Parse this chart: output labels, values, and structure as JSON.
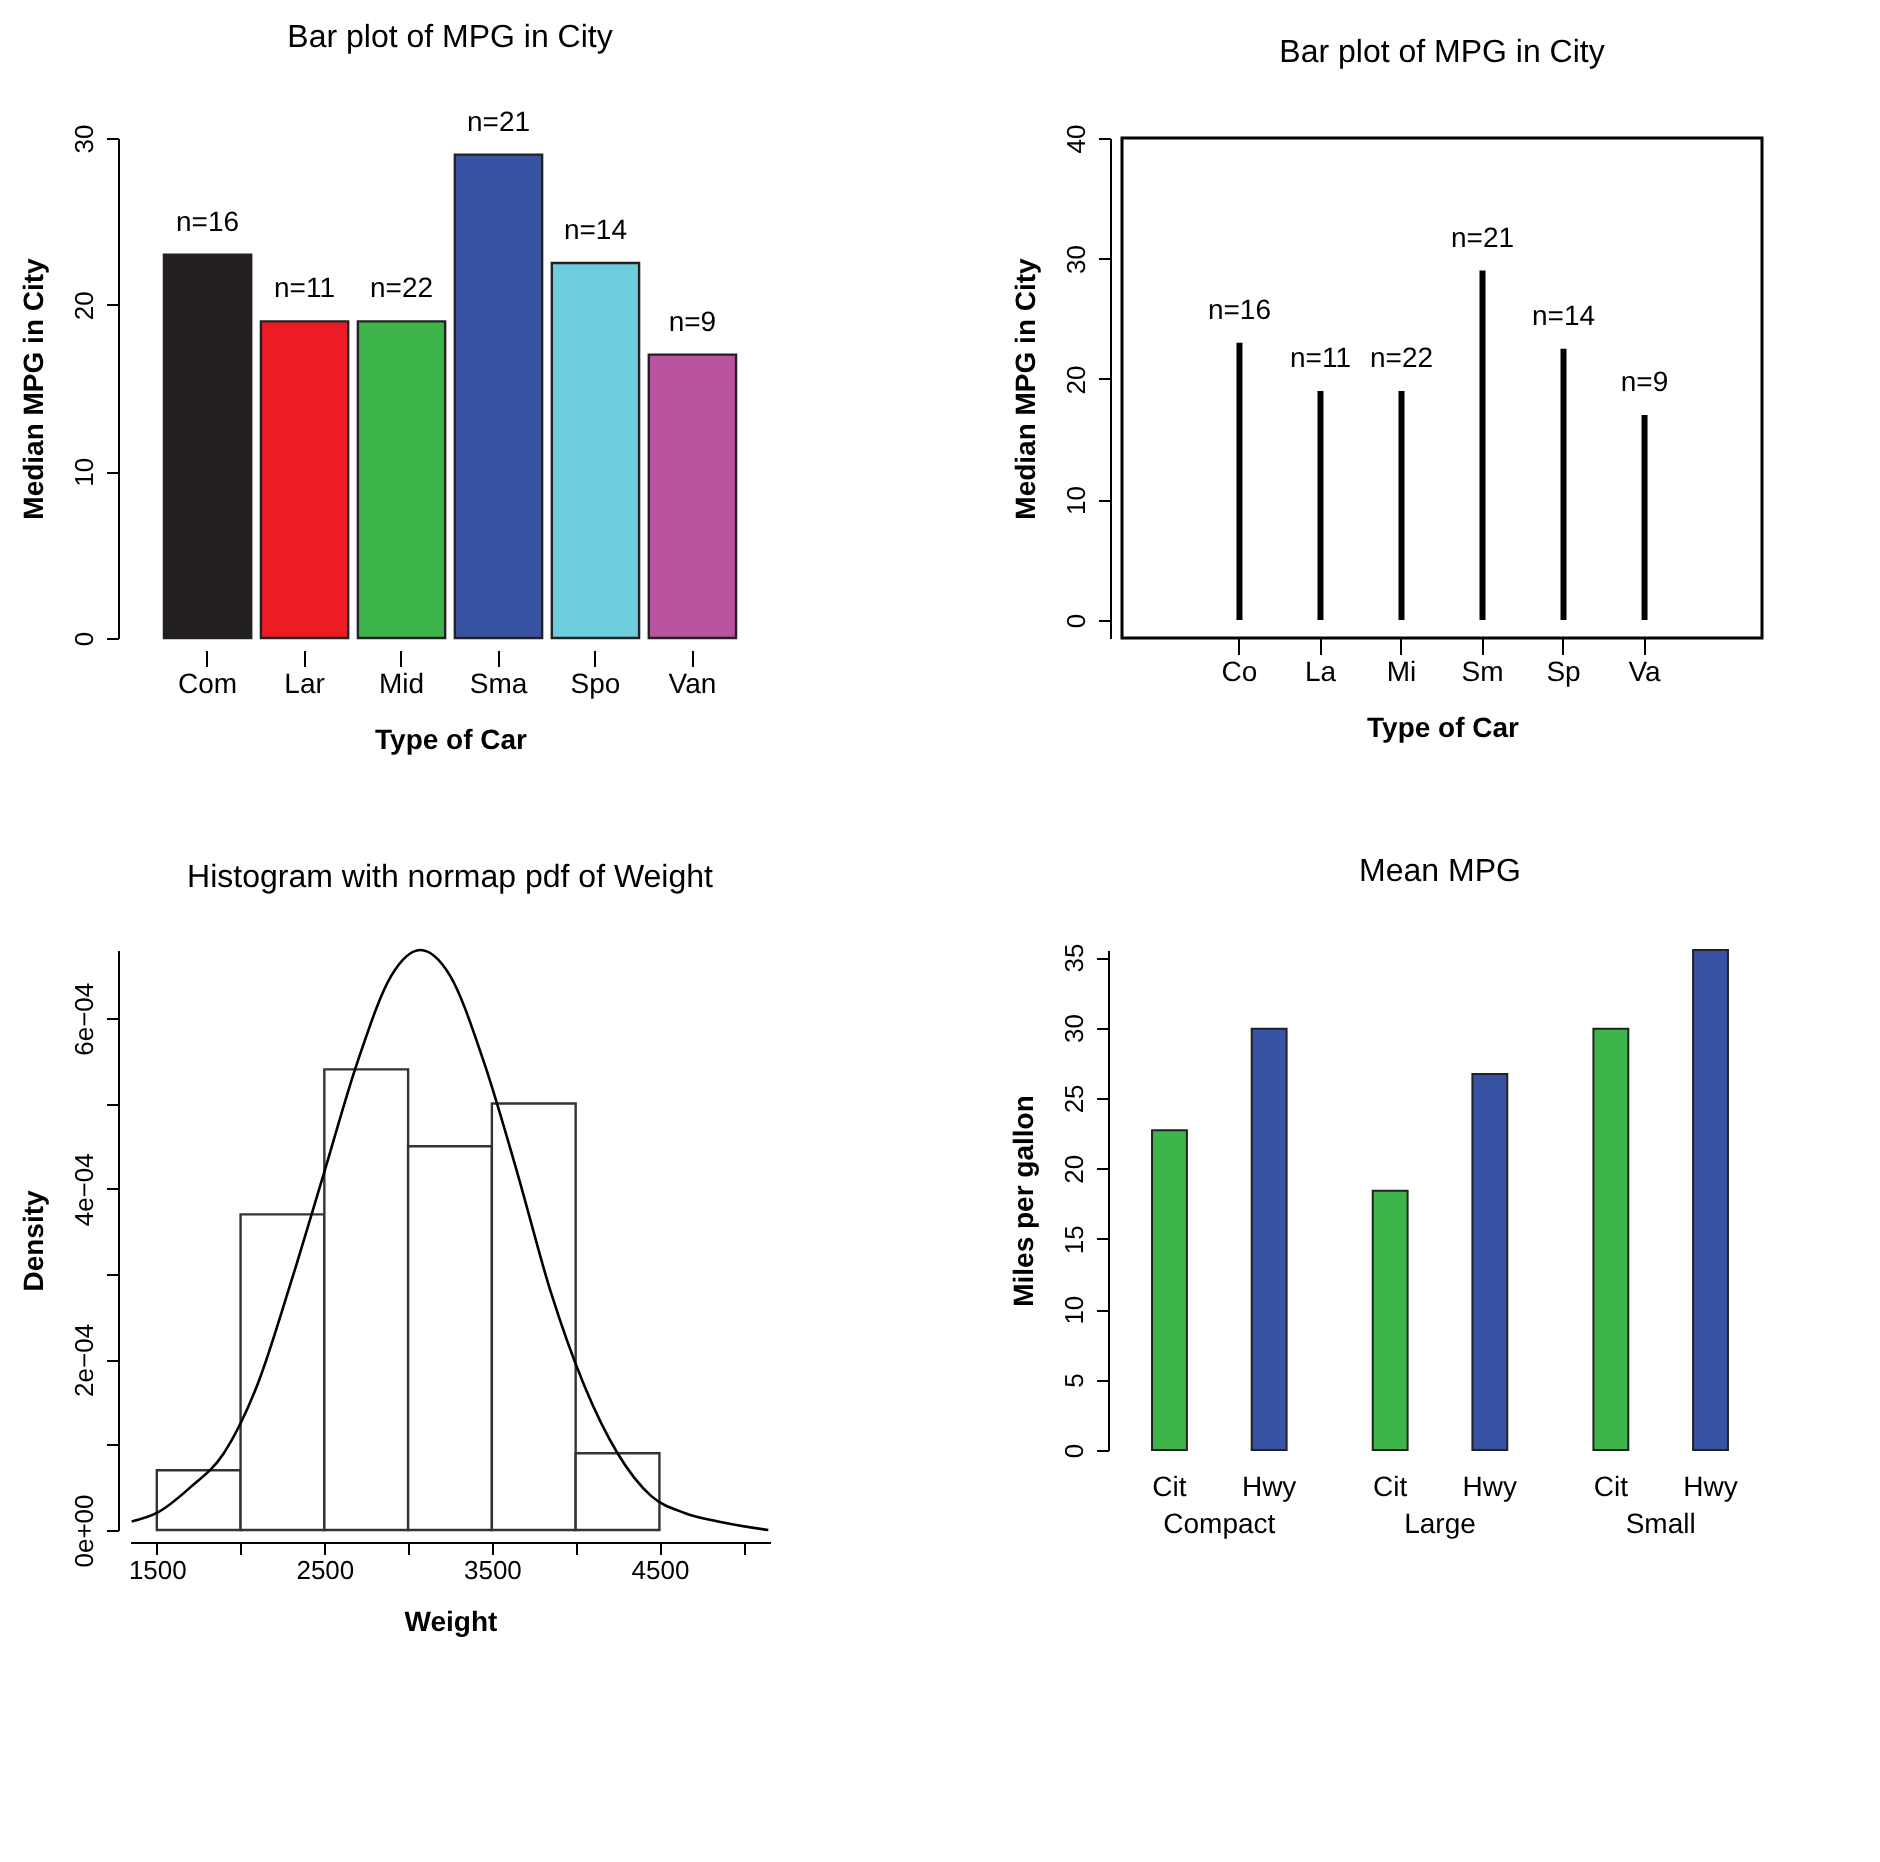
{
  "chart_data": [
    {
      "type": "bar",
      "title": "Bar plot of MPG in City",
      "xlabel": "Type of Car",
      "ylabel": "Median MPG in City",
      "categories": [
        "Com",
        "Lar",
        "Mid",
        "Sma",
        "Spo",
        "Van"
      ],
      "values": [
        23,
        19,
        19,
        29,
        22.5,
        17
      ],
      "colors": [
        "#231f20",
        "#ed1c24",
        "#3db54a",
        "#3953a4",
        "#6ccedd",
        "#b9529f"
      ],
      "annotations": [
        {
          "text": "n=16",
          "x": "Com",
          "y": 23
        },
        {
          "text": "n=11",
          "x": "Lar",
          "y": 19
        },
        {
          "text": "n=22",
          "x": "Mid",
          "y": 19
        },
        {
          "text": "n=21",
          "x": "Sma",
          "y": 29
        },
        {
          "text": "n=14",
          "x": "Spo",
          "y": 22.5
        },
        {
          "text": "n=9",
          "x": "Van",
          "y": 17
        }
      ],
      "ylim": [
        0,
        30
      ],
      "yticks": [
        0,
        10,
        20,
        30
      ],
      "grid": false
    },
    {
      "type": "bar",
      "title": "Bar plot of MPG in City",
      "xlabel": "Type of Car",
      "ylabel": "Median MPG in City",
      "categories": [
        "Co",
        "La",
        "Mi",
        "Sm",
        "Sp",
        "Va"
      ],
      "values": [
        23,
        19,
        19,
        29,
        22.5,
        17
      ],
      "color": "#000000",
      "annotations": [
        {
          "text": "n=16",
          "x": "Co",
          "y": 23
        },
        {
          "text": "n=11",
          "x": "La",
          "y": 19
        },
        {
          "text": "n=22",
          "x": "Mi",
          "y": 19
        },
        {
          "text": "n=21",
          "x": "Sm",
          "y": 29
        },
        {
          "text": "n=14",
          "x": "Sp",
          "y": 22.5
        },
        {
          "text": "n=9",
          "x": "Va",
          "y": 17
        }
      ],
      "ylim": [
        -1.5,
        40
      ],
      "yticks": [
        0,
        10,
        20,
        30,
        40
      ],
      "grid": false
    },
    {
      "type": "histogram",
      "title": "Histogram with normap pdf of Weight",
      "xlabel": "Weight",
      "ylabel": "Density",
      "bins": [
        1500,
        2000,
        2500,
        3000,
        3500,
        4000,
        4500
      ],
      "values": [
        7e-05,
        0.00037,
        0.00054,
        0.00045,
        0.0005,
        9e-05
      ],
      "color": "#ffffff",
      "series": [
        {
          "type": "line",
          "color": "#000000",
          "x": [
            1350,
            1500,
            1700,
            1900,
            2100,
            2300,
            2500,
            2700,
            2900,
            3073,
            3250,
            3450,
            3650,
            3850,
            4050,
            4250,
            4450,
            4650,
            4850,
            5150
          ],
          "values": [
            1e-05,
            2e-05,
            5e-05,
            9e-05,
            0.00017,
            0.00029,
            0.00042,
            0.00055,
            0.00065,
            0.00068,
            0.00065,
            0.00055,
            0.00042,
            0.00028,
            0.00017,
            9e-05,
            4e-05,
            2e-05,
            1e-05,
            0
          ]
        }
      ],
      "xlim": [
        1340,
        5160
      ],
      "xticks": [
        1500,
        {
          "value": 2000,
          "label": null
        },
        2500,
        {
          "value": 3000,
          "label": null
        },
        3500,
        {
          "value": 4000,
          "label": null
        },
        4500,
        {
          "value": 5000,
          "label": null
        }
      ],
      "ylim": [
        0,
        0.00068
      ],
      "yticks": [
        {
          "value": 0,
          "label": "0e+00"
        },
        {
          "value": 0.0001,
          "label": null
        },
        {
          "value": 0.0002,
          "label": "2e−04"
        },
        {
          "value": 0.0003,
          "label": null
        },
        {
          "value": 0.0004,
          "label": "4e−04"
        },
        {
          "value": 0.0005,
          "label": null
        },
        {
          "value": 0.0006,
          "label": "6e−04"
        }
      ],
      "grid": false
    },
    {
      "type": "bar",
      "title": "Mean MPG",
      "ylabel": "Miles per gallon",
      "categories": [
        "Compact",
        "Large",
        "Small"
      ],
      "series": [
        {
          "name": "Cit",
          "color": "#3db54a",
          "values": [
            22.7,
            18.4,
            29.9
          ]
        },
        {
          "name": "Hwy",
          "color": "#3953a4",
          "values": [
            29.9,
            26.7,
            35.5
          ]
        }
      ],
      "ylim": [
        0,
        35.5
      ],
      "yticks": [
        0,
        5,
        10,
        15,
        20,
        25,
        30,
        35
      ],
      "grid": false
    }
  ]
}
